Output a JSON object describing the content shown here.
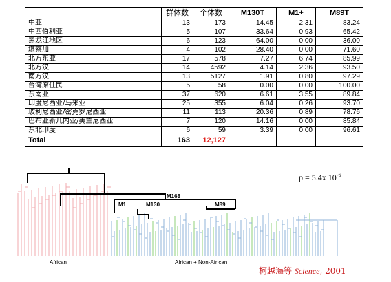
{
  "table": {
    "headers": {
      "region": "",
      "groups": "群体数",
      "individuals": "个体数",
      "m130t": "M130T",
      "m1": "M1+",
      "m89t": "M89T"
    },
    "rows": [
      {
        "region": "中亚",
        "groups": "13",
        "individuals": "173",
        "m130t": "14.45",
        "m1": "2.31",
        "m89t": "83.24"
      },
      {
        "region": "中西伯利亚",
        "groups": "5",
        "individuals": "107",
        "m130t": "33.64",
        "m1": "0.93",
        "m89t": "65.42"
      },
      {
        "region": "黑龙江地区",
        "groups": "6",
        "individuals": "123",
        "m130t": "64.00",
        "m1": "0.00",
        "m89t": "36.00"
      },
      {
        "region": "堪察加",
        "groups": "4",
        "individuals": "102",
        "m130t": "28.40",
        "m1": "0.00",
        "m89t": "71.60"
      },
      {
        "region": "北方东亚",
        "groups": "17",
        "individuals": "578",
        "m130t": "7.27",
        "m1": "6.74",
        "m89t": "85.99"
      },
      {
        "region": "北方汉",
        "groups": "14",
        "individuals": "4592",
        "m130t": "4.14",
        "m1": "2.36",
        "m89t": "93.50"
      },
      {
        "region": "南方汉",
        "groups": "13",
        "individuals": "5127",
        "m130t": "1.91",
        "m1": "0.80",
        "m89t": "97.29"
      },
      {
        "region": "台湾原住民",
        "groups": "5",
        "individuals": "58",
        "m130t": "0.00",
        "m1": "0.00",
        "m89t": "100.00"
      },
      {
        "region": "东南亚",
        "groups": "37",
        "individuals": "620",
        "m130t": "6.61",
        "m1": "3.55",
        "m89t": "89.84"
      },
      {
        "region": "印度尼西亚/马来亚",
        "groups": "25",
        "individuals": "355",
        "m130t": "6.04",
        "m1": "0.26",
        "m89t": "93.70"
      },
      {
        "region": "玻利尼西亚/密克罗尼西亚",
        "groups": "11",
        "individuals": "113",
        "m130t": "20.36",
        "m1": "0.89",
        "m89t": "78.76"
      },
      {
        "region": "巴布亚新几内亚/美兰尼西亚",
        "groups": "7",
        "individuals": "120",
        "m130t": "14.16",
        "m1": "0.00",
        "m89t": "85.84"
      },
      {
        "region": "东北印度",
        "groups": "6",
        "individuals": "59",
        "m130t": "3.39",
        "m1": "0.00",
        "m89t": "96.61"
      }
    ],
    "total": {
      "label": "Total",
      "groups": "163",
      "individuals": "12,127",
      "m130t": "",
      "m1": "",
      "m89t": ""
    }
  },
  "pvalue": {
    "prefix": "p = 5.4x 10",
    "exponent": "-6"
  },
  "tree": {
    "labels": {
      "m168": "M168",
      "m1": "M1",
      "m130": "M130",
      "m89": "M89"
    },
    "bottom_labels": {
      "african": "African",
      "mixed": "African + Non-African"
    }
  },
  "citation": {
    "authors": "柯越海等",
    "journal": "Science",
    "year": ", 2001"
  },
  "colors": {
    "red_text": "#e0201b",
    "citation": "#c8191b",
    "pink": "#f2a9ad",
    "green": "#8fd17a",
    "blue": "#8fb3d9"
  }
}
